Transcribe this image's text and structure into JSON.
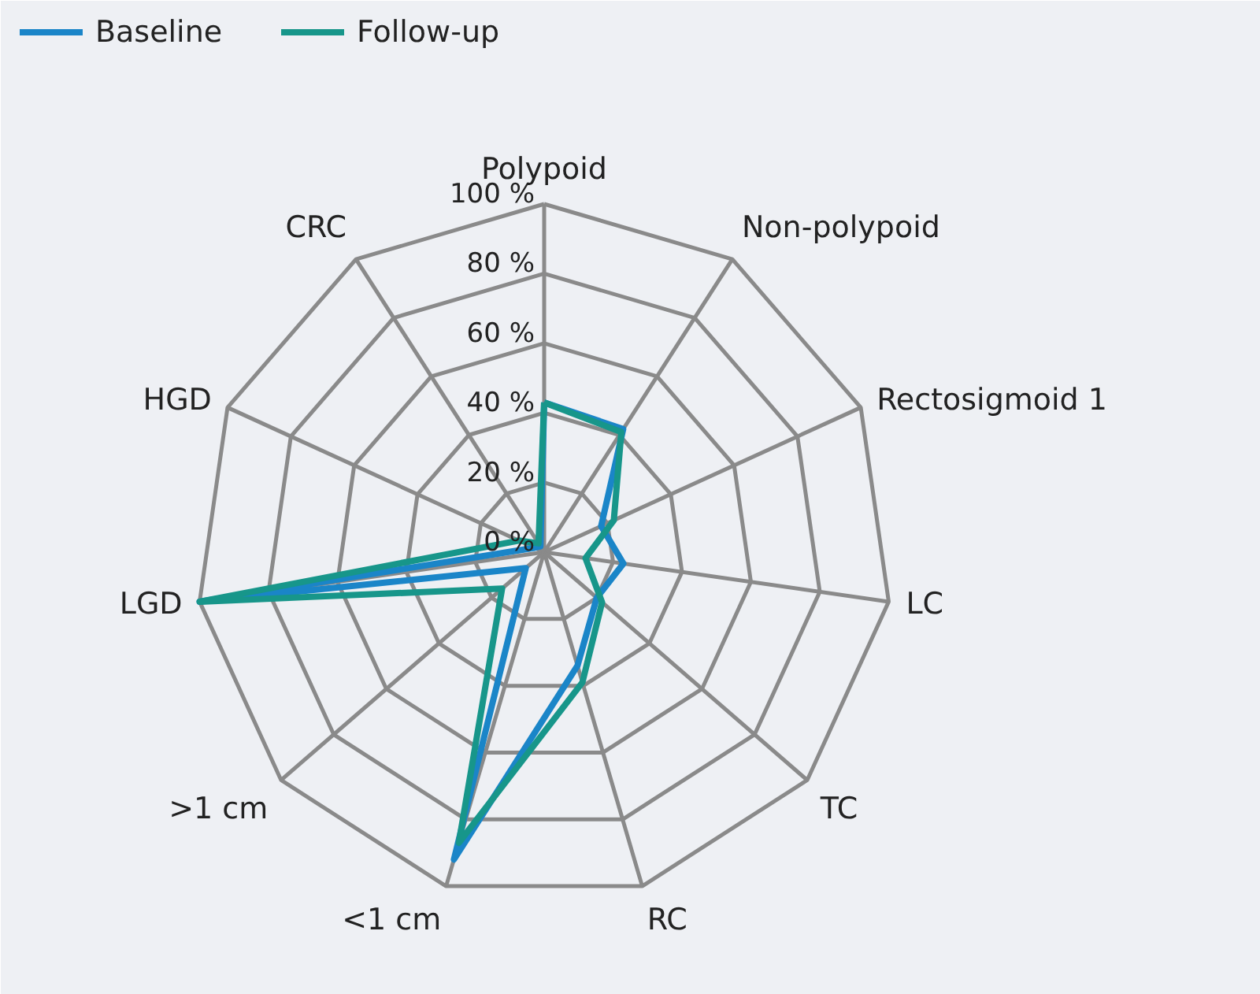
{
  "chart_data": {
    "type": "radar",
    "categories": [
      "Polypoid",
      "Non-polypoid",
      "Rectosigmoid 1",
      "LC",
      "TC",
      "RC",
      "<1 cm",
      ">1 cm",
      "LGD",
      "HGD",
      "CRC"
    ],
    "series": [
      {
        "name": "Baseline",
        "color": "#1a85c8",
        "values": [
          43,
          42,
          18,
          23,
          20,
          34,
          92,
          7,
          100,
          3,
          2
        ]
      },
      {
        "name": "Follow-up",
        "color": "#17968a",
        "values": [
          43,
          41,
          22,
          12,
          22,
          39,
          87,
          16,
          100,
          8,
          3
        ]
      }
    ],
    "ylim": [
      0,
      100
    ],
    "yticks": [
      {
        "value": 0,
        "label": "0 %"
      },
      {
        "value": 20,
        "label": "20 %"
      },
      {
        "value": 40,
        "label": "40 %"
      },
      {
        "value": 60,
        "label": "60 %"
      },
      {
        "value": 80,
        "label": "80 %"
      },
      {
        "value": 100,
        "label": "100 %"
      }
    ],
    "legend": "top left",
    "grid": true
  }
}
